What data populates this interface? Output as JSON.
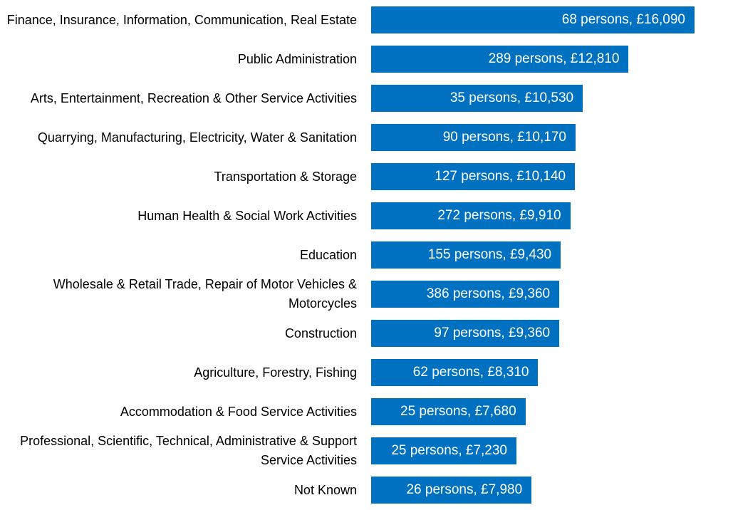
{
  "chart_data": {
    "type": "bar",
    "orientation": "horizontal",
    "title": "",
    "xlabel": "",
    "ylabel": "",
    "xlim": [
      0,
      16090
    ],
    "grid": false,
    "bar_color": "#0070C0",
    "categories": [
      "Finance, Insurance, Information, Communication, Real Estate",
      "Public Administration",
      "Arts, Entertainment, Recreation & Other Service Activities",
      "Quarrying, Manufacturing, Electricity, Water & Sanitation",
      "Transportation & Storage",
      "Human Health & Social Work Activities",
      "Education",
      "Wholesale & Retail Trade, Repair of Motor Vehicles & Motorcycles",
      "Construction",
      "Agriculture, Forestry, Fishing",
      "Accommodation & Food Service Activities",
      "Professional, Scientific, Technical, Administrative & Support Service Activities",
      "Not Known"
    ],
    "values": [
      16090,
      12810,
      10530,
      10170,
      10140,
      9910,
      9430,
      9360,
      9360,
      8310,
      7680,
      7230,
      7980
    ],
    "persons": [
      68,
      289,
      35,
      90,
      127,
      272,
      155,
      386,
      97,
      62,
      25,
      25,
      26
    ],
    "data_labels": [
      "68 persons, £16,090",
      "289 persons, £12,810",
      "35 persons, £10,530",
      "90 persons, £10,170",
      "127 persons, £10,140",
      "272 persons, £9,910",
      "155 persons, £9,430",
      "386 persons, £9,360",
      "97 persons, £9,360",
      "62 persons, £8,310",
      "25 persons, £7,680",
      "25 persons, £7,230",
      "26 persons, £7,980"
    ]
  }
}
